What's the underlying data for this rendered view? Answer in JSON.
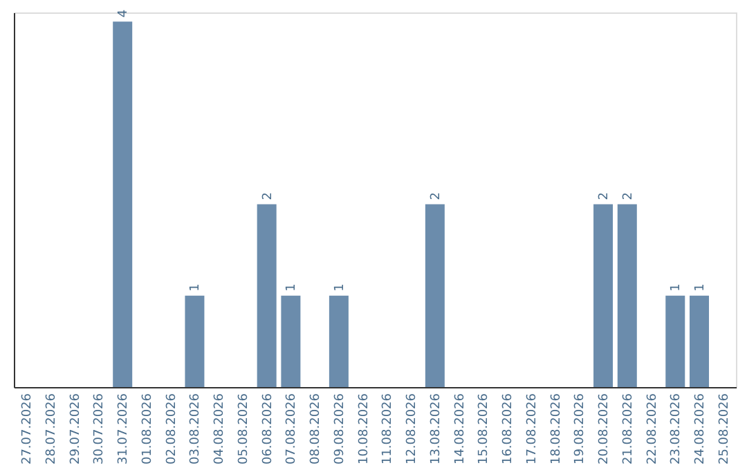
{
  "chart_data": {
    "type": "bar",
    "categories": [
      "27.07.2026",
      "28.07.2026",
      "29.07.2026",
      "30.07.2026",
      "31.07.2026",
      "01.08.2026",
      "02.08.2026",
      "03.08.2026",
      "04.08.2026",
      "05.08.2026",
      "06.08.2026",
      "07.08.2026",
      "08.08.2026",
      "09.08.2026",
      "10.08.2026",
      "11.08.2026",
      "12.08.2026",
      "13.08.2026",
      "14.08.2026",
      "15.08.2026",
      "16.08.2026",
      "17.08.2026",
      "18.08.2026",
      "19.08.2026",
      "20.08.2026",
      "21.08.2026",
      "22.08.2026",
      "23.08.2026",
      "24.08.2026",
      "25.08.2026"
    ],
    "values": [
      0,
      0,
      0,
      0,
      4,
      0,
      0,
      1,
      0,
      0,
      2,
      1,
      0,
      1,
      0,
      0,
      0,
      2,
      0,
      0,
      0,
      0,
      0,
      0,
      2,
      2,
      0,
      1,
      1,
      0
    ],
    "value_labels": [
      null,
      null,
      null,
      null,
      "4",
      null,
      null,
      "1",
      null,
      null,
      "2",
      "1",
      null,
      "1",
      null,
      null,
      null,
      "2",
      null,
      null,
      null,
      null,
      null,
      null,
      "2",
      "2",
      null,
      "1",
      "1",
      null
    ],
    "color": "#6b8cac",
    "ylim": [
      0,
      4.1
    ],
    "tick_labels": "x",
    "grid": false
  }
}
